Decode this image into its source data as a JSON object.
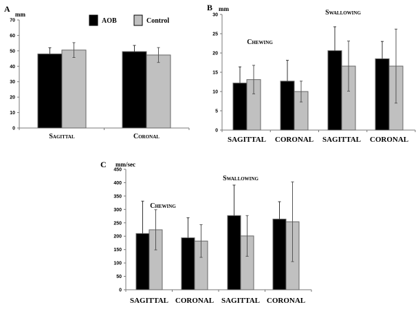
{
  "legend": {
    "items": [
      {
        "label": "AOB",
        "color": "#000000"
      },
      {
        "label": "Control",
        "color": "#c0c0c0"
      }
    ]
  },
  "chart_data": [
    {
      "type": "bar",
      "panel": "A",
      "ylabel": "mm",
      "ylim": [
        0,
        70
      ],
      "yticks": [
        0,
        10,
        20,
        30,
        40,
        50,
        60,
        70
      ],
      "categories": [
        "Sagittal",
        "Coronal"
      ],
      "series": [
        {
          "name": "AOB",
          "values": [
            48,
            49.5
          ],
          "err": [
            4,
            4
          ]
        },
        {
          "name": "Control",
          "values": [
            50.5,
            47.3
          ],
          "err": [
            4.8,
            4.8
          ]
        }
      ],
      "annotations": []
    },
    {
      "type": "bar",
      "panel": "B",
      "ylabel": "mm",
      "ylim": [
        0,
        30
      ],
      "yticks": [
        0,
        5,
        10,
        15,
        20,
        25,
        30
      ],
      "categories": [
        "SAGITTAL",
        "CORONAL",
        "SAGITTAL",
        "CORONAL"
      ],
      "series": [
        {
          "name": "AOB",
          "values": [
            12.2,
            12.7,
            20.6,
            18.5
          ],
          "err": [
            4.2,
            5.4,
            6.2,
            4.5
          ]
        },
        {
          "name": "Control",
          "values": [
            13.1,
            10.0,
            16.6,
            16.6
          ],
          "err": [
            3.7,
            2.7,
            6.5,
            9.6
          ]
        }
      ],
      "annotations": [
        "Chewing",
        "Swallowing"
      ]
    },
    {
      "type": "bar",
      "panel": "C",
      "ylabel": "mm/sec",
      "ylim": [
        0,
        450
      ],
      "yticks": [
        0,
        50,
        100,
        150,
        200,
        250,
        300,
        350,
        400,
        450
      ],
      "categories": [
        "SAGITTAL",
        "CORONAL",
        "SAGITTAL",
        "CORONAL"
      ],
      "series": [
        {
          "name": "AOB",
          "values": [
            210,
            194,
            277,
            264
          ],
          "err": [
            121,
            75,
            114,
            65
          ]
        },
        {
          "name": "Control",
          "values": [
            224,
            182,
            201,
            254
          ],
          "err": [
            75,
            61,
            76,
            149
          ]
        }
      ],
      "annotations": [
        "Chewing",
        "Swallowing"
      ]
    }
  ]
}
